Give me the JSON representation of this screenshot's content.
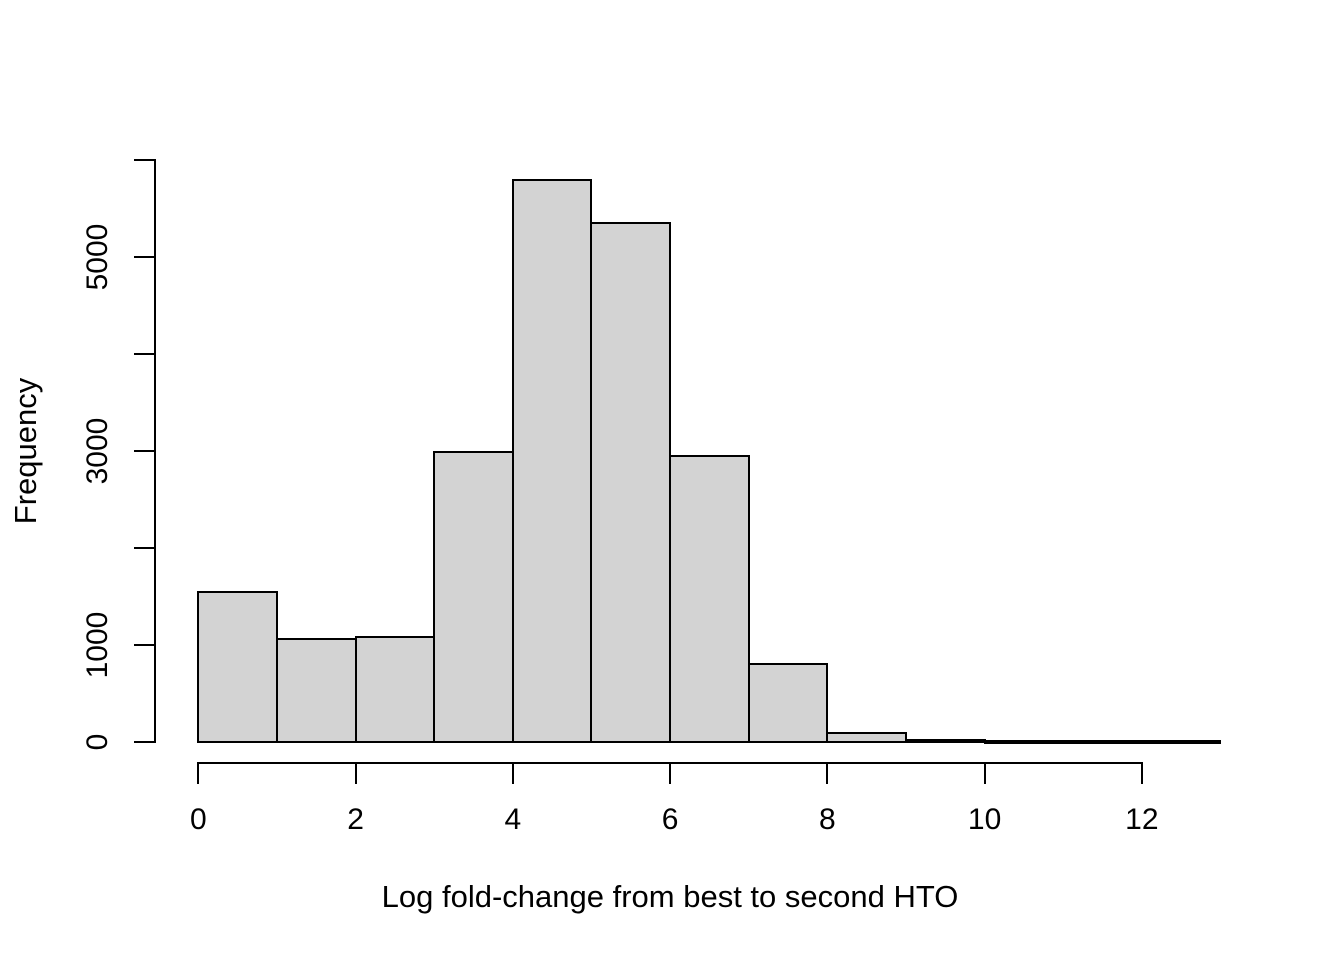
{
  "figure": {
    "background": "#ffffff",
    "text_color": "#000000"
  },
  "chart_data": {
    "type": "bar",
    "subtype": "histogram",
    "title": "",
    "xlabel": "Log fold-change from best to second HTO",
    "ylabel": "Frequency",
    "bar_fill": "#d3d3d3",
    "bar_border": "#000000",
    "axis_color": "#000000",
    "grid": false,
    "legend_position": "none",
    "xlim": [
      0,
      13
    ],
    "ylim": [
      0,
      6000
    ],
    "bin_width": 1,
    "bins": [
      {
        "start": 0,
        "end": 1,
        "count": 1540
      },
      {
        "start": 1,
        "end": 2,
        "count": 1060
      },
      {
        "start": 2,
        "end": 3,
        "count": 1075
      },
      {
        "start": 3,
        "end": 4,
        "count": 2990
      },
      {
        "start": 4,
        "end": 5,
        "count": 5790
      },
      {
        "start": 5,
        "end": 6,
        "count": 5350
      },
      {
        "start": 6,
        "end": 7,
        "count": 2950
      },
      {
        "start": 7,
        "end": 8,
        "count": 800
      },
      {
        "start": 8,
        "end": 9,
        "count": 90
      },
      {
        "start": 9,
        "end": 10,
        "count": 15
      },
      {
        "start": 10,
        "end": 11,
        "count": 6
      },
      {
        "start": 11,
        "end": 12,
        "count": 4
      },
      {
        "start": 12,
        "end": 13,
        "count": 3
      }
    ],
    "x_ticks": [
      0,
      2,
      4,
      6,
      8,
      10,
      12
    ],
    "x_tick_labels": [
      "0",
      "2",
      "4",
      "6",
      "8",
      "10",
      "12"
    ],
    "y_ticks": [
      0,
      1000,
      2000,
      3000,
      4000,
      5000,
      6000
    ],
    "y_labeled_ticks": [
      0,
      1000,
      3000,
      5000
    ],
    "y_tick_labels": [
      "0",
      "1000",
      "3000",
      "5000"
    ]
  }
}
